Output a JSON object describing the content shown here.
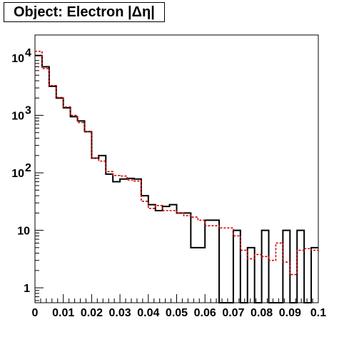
{
  "chart_data": {
    "type": "histogram",
    "title": "Object: Electron |Δη|",
    "xlabel": "",
    "ylabel": "",
    "xlim": [
      0,
      0.1
    ],
    "ylim": [
      0.55,
      25000
    ],
    "yscale": "log",
    "grid": false,
    "legend": "none",
    "bin_width": 0.0025,
    "x_ticks": [
      {
        "value": 0,
        "label": "0"
      },
      {
        "value": 0.01,
        "label": "0.01"
      },
      {
        "value": 0.02,
        "label": "0.02"
      },
      {
        "value": 0.03,
        "label": "0.03"
      },
      {
        "value": 0.04,
        "label": "0.04"
      },
      {
        "value": 0.05,
        "label": "0.05"
      },
      {
        "value": 0.06,
        "label": "0.06"
      },
      {
        "value": 0.07,
        "label": "0.07"
      },
      {
        "value": 0.08,
        "label": "0.08"
      },
      {
        "value": 0.09,
        "label": "0.09"
      },
      {
        "value": 0.1,
        "label": "0.1"
      }
    ],
    "y_ticks": [
      {
        "value": 1,
        "base": "1",
        "exp": ""
      },
      {
        "value": 10,
        "base": "10",
        "exp": ""
      },
      {
        "value": 100,
        "base": "10",
        "exp": "2"
      },
      {
        "value": 1000,
        "base": "10",
        "exp": "3"
      },
      {
        "value": 10000,
        "base": "10",
        "exp": "4"
      }
    ],
    "series": [
      {
        "style": "solid",
        "color": "#000000",
        "values": [
          11000,
          7000,
          3200,
          2000,
          1350,
          950,
          800,
          520,
          180,
          200,
          95,
          70,
          78,
          80,
          78,
          40,
          28,
          22,
          26,
          28,
          20,
          20,
          5,
          5,
          15,
          15,
          0,
          0,
          10,
          0,
          5,
          0,
          10,
          0,
          0,
          10,
          0,
          10,
          0,
          5
        ]
      },
      {
        "style": "dashed",
        "color": "#d40000",
        "values": [
          13000,
          6500,
          3300,
          2050,
          1400,
          1000,
          750,
          520,
          180,
          160,
          105,
          90,
          88,
          75,
          72,
          32,
          24,
          27,
          22,
          22,
          20,
          18,
          17,
          15,
          12,
          12,
          11,
          11,
          8,
          4.5,
          3.2,
          3.8,
          3.5,
          3.0,
          6.0,
          2.8,
          1.7,
          4.5,
          4.8,
          4.5
        ]
      }
    ]
  }
}
